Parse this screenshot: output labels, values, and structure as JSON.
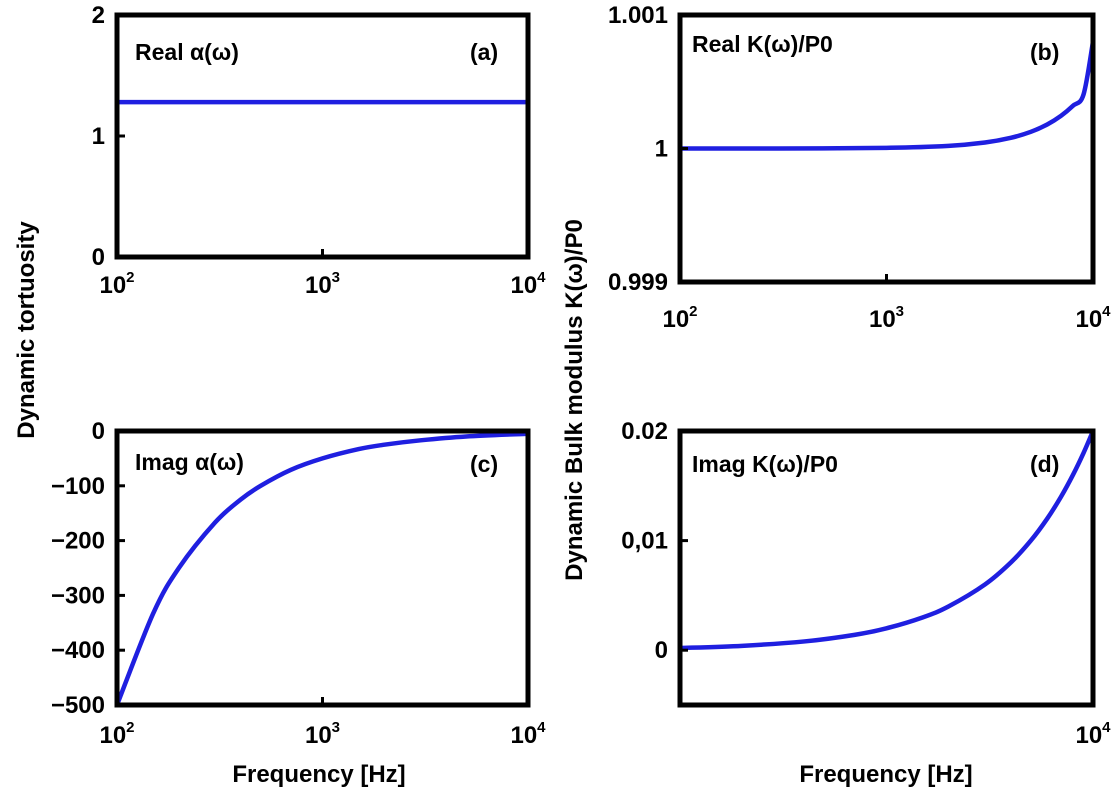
{
  "figure": {
    "left_ylabel": "Dynamic tortuosity",
    "right_ylabel": "Dynamic Bulk modulus K(ω)/P0",
    "bottom_xlabel_left": "Frequency [Hz]",
    "bottom_xlabel_right": "Frequency [Hz]"
  },
  "chart_data": [
    {
      "id": "a",
      "type": "line",
      "xscale": "log",
      "xlim": [
        100,
        10000
      ],
      "ylim": [
        0,
        2
      ],
      "xticks": [
        100,
        1000,
        10000
      ],
      "xtick_labels": [
        {
          "base": "10",
          "exp": "2"
        },
        {
          "base": "10",
          "exp": "3"
        },
        {
          "base": "10",
          "exp": "4"
        }
      ],
      "yticks": [
        0,
        1,
        2
      ],
      "ytick_labels": [
        "0",
        "1",
        "2"
      ],
      "annotation": "Real α(ω)",
      "panel_label": "(a)",
      "line_color": "#1f1fe0",
      "series": [
        {
          "x": [
            100,
            1000,
            10000
          ],
          "y": [
            1.28,
            1.28,
            1.28
          ]
        }
      ]
    },
    {
      "id": "b",
      "type": "line",
      "xscale": "log",
      "xlim": [
        100,
        10000
      ],
      "ylim": [
        0.999,
        1.001
      ],
      "xticks": [
        100,
        1000,
        10000
      ],
      "xtick_labels": [
        {
          "base": "10",
          "exp": "2"
        },
        {
          "base": "10",
          "exp": "3"
        },
        {
          "base": "10",
          "exp": "4"
        }
      ],
      "yticks": [
        0.999,
        1,
        1.001
      ],
      "ytick_labels": [
        "0.999",
        "1",
        "1.001"
      ],
      "annotation": "Real K(ω)/P0",
      "panel_label": "(b)",
      "line_color": "#1f1fe0",
      "series": [
        {
          "x": [
            100,
            300,
            1000,
            2000,
            3000,
            4000,
            5000,
            6000,
            7000,
            8000,
            9000,
            10000
          ],
          "y": [
            1.0,
            1.0,
            1.000005,
            1.00002,
            1.000045,
            1.00008,
            1.000125,
            1.00018,
            1.000245,
            1.00032,
            1.000405,
            1.0008
          ]
        }
      ]
    },
    {
      "id": "c",
      "type": "line",
      "xscale": "log",
      "xlim": [
        100,
        10000
      ],
      "ylim": [
        -500,
        0
      ],
      "xticks": [
        100,
        1000,
        10000
      ],
      "xtick_labels": [
        {
          "base": "10",
          "exp": "2"
        },
        {
          "base": "10",
          "exp": "3"
        },
        {
          "base": "10",
          "exp": "4"
        }
      ],
      "yticks": [
        -500,
        -400,
        -300,
        -200,
        -100,
        0
      ],
      "ytick_labels": [
        "−500",
        "−400",
        "−300",
        "−200",
        "−100",
        "0"
      ],
      "annotation": "Imag α(ω)",
      "panel_label": "(c)",
      "line_color": "#1f1fe0",
      "series": [
        {
          "x": [
            100,
            150,
            200,
            300,
            400,
            500,
            700,
            1000,
            1500,
            2000,
            3000,
            5000,
            10000
          ],
          "y": [
            -500,
            -333,
            -250,
            -167,
            -125,
            -100,
            -71,
            -50,
            -33,
            -25,
            -17,
            -10,
            -5
          ]
        }
      ]
    },
    {
      "id": "d",
      "type": "line",
      "xscale": "log",
      "xlim": [
        100,
        10000
      ],
      "ylim": [
        -0.005,
        0.02
      ],
      "xticks": [
        10000
      ],
      "xtick_labels": [
        {
          "base": "10",
          "exp": "4"
        }
      ],
      "yticks": [
        0,
        0.01,
        0.02
      ],
      "ytick_labels": [
        "0",
        "0,01",
        "0.02"
      ],
      "annotation": "Imag K(ω)/P0",
      "panel_label": "(d)",
      "line_color": "#1f1fe0",
      "series": [
        {
          "x": [
            100,
            200,
            400,
            700,
            1000,
            1500,
            2000,
            3000,
            4000,
            5000,
            6000,
            7000,
            8000,
            9000,
            10000
          ],
          "y": [
            0.0002,
            0.0004,
            0.0008,
            0.0014,
            0.002,
            0.003,
            0.004,
            0.006,
            0.008,
            0.01,
            0.012,
            0.014,
            0.016,
            0.018,
            0.02
          ]
        }
      ]
    }
  ]
}
